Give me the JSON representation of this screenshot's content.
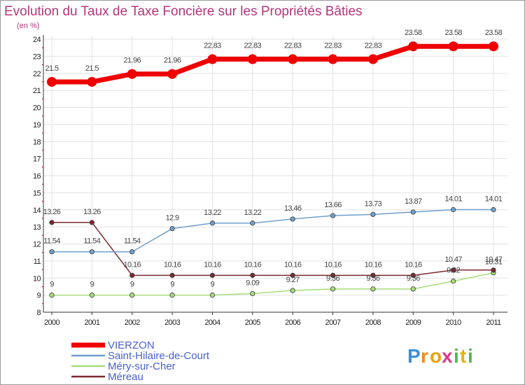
{
  "colors": {
    "title": "#b5357a",
    "axis": "#333333",
    "grid": "#e2e2e2",
    "legend_text": "#4a5fd0"
  },
  "chart_data": {
    "type": "line",
    "title": "Evolution du Taux de Taxe Foncière sur les Propriétés Bâties",
    "subtitle": "(en %)",
    "xlabel": "",
    "ylabel": "(en %)",
    "x": [
      "2000",
      "2001",
      "2002",
      "2003",
      "2004",
      "2005",
      "2006",
      "2007",
      "2008",
      "2009",
      "2010",
      "2011"
    ],
    "ylim": [
      8,
      24
    ],
    "yticks": [
      8,
      9,
      10,
      11,
      12,
      13,
      14,
      15,
      16,
      17,
      18,
      19,
      20,
      21,
      22,
      23,
      24
    ],
    "legend_position": "bottom-left",
    "series": [
      {
        "name": "VIERZON",
        "color": "#ee0000",
        "values": [
          21.5,
          21.5,
          21.96,
          21.96,
          22.83,
          22.83,
          22.83,
          22.83,
          22.83,
          23.58,
          23.58,
          23.58
        ],
        "labels": [
          "21.5",
          "21.5",
          "21.96",
          "21.96",
          "22.83",
          "22.83",
          "22.83",
          "22.83",
          "22.83",
          "23.58",
          "23.58",
          "23.58"
        ]
      },
      {
        "name": "Saint-Hilaire-de-Court",
        "color": "#6fa0cc",
        "values": [
          11.54,
          11.54,
          11.54,
          12.9,
          13.22,
          13.22,
          13.46,
          13.66,
          13.73,
          13.87,
          14.01,
          14.01
        ],
        "labels": [
          "11.54",
          "11.54",
          "11.54",
          "12.9",
          "13.22",
          "13.22",
          "13.46",
          "13.66",
          "13.73",
          "13.87",
          "14.01",
          "14.01"
        ]
      },
      {
        "name": "Méry-sur-Cher",
        "color": "#a6dc7a",
        "values": [
          9,
          9,
          9,
          9,
          9,
          9.09,
          9.27,
          9.36,
          9.36,
          9.36,
          9.82,
          10.31
        ],
        "labels": [
          "9",
          "9",
          "9",
          "9",
          "9",
          "9.09",
          "9.27",
          "9.36",
          "9.36",
          "9.36",
          "9.82",
          "10.31"
        ]
      },
      {
        "name": "Méreau",
        "color": "#7a2a30",
        "values": [
          13.26,
          13.26,
          10.16,
          10.16,
          10.16,
          10.16,
          10.16,
          10.16,
          10.16,
          10.16,
          10.47,
          10.47
        ],
        "labels": [
          "13.26",
          "13.26",
          "10.16",
          "10.16",
          "10.16",
          "10.16",
          "10.16",
          "10.16",
          "10.16",
          "10.16",
          "10.47",
          "10.47"
        ]
      }
    ]
  },
  "logo": {
    "letters": [
      "P",
      "r",
      "o",
      "x",
      "i",
      "t",
      "i"
    ],
    "colors": [
      "#3a8fd8",
      "#f08a1c",
      "#e8a010",
      "#d83a8a",
      "#52b84a",
      "#e8b010",
      "#52b84a"
    ]
  }
}
